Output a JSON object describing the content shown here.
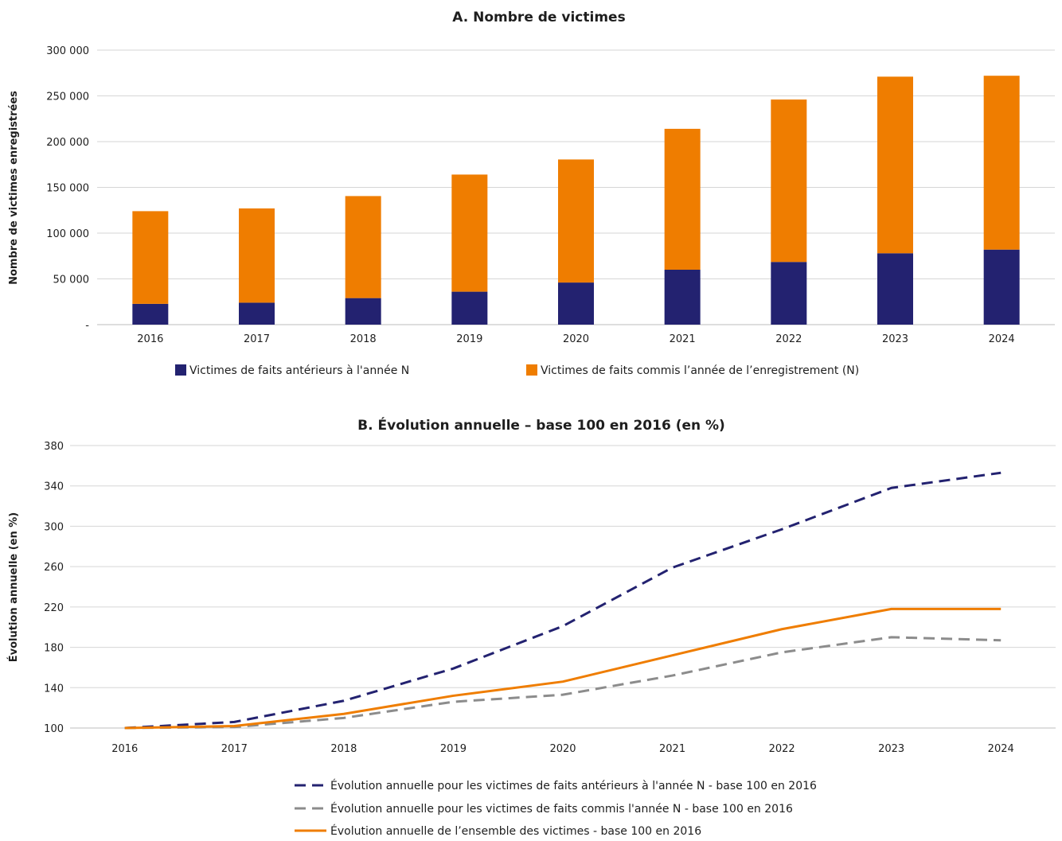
{
  "chart_data": [
    {
      "type": "bar",
      "stacked": true,
      "title": "A. Nombre de victimes",
      "xlabel": "",
      "ylabel": "Nombre de victimes enregistrées",
      "ylim": [
        0,
        300000
      ],
      "yticks": [
        0,
        50000,
        100000,
        150000,
        200000,
        250000,
        300000
      ],
      "ytick_labels": [
        "-",
        "50 000",
        "100 000",
        "150 000",
        "200 000",
        "250 000",
        "300 000"
      ],
      "grid": true,
      "legend_position": "bottom",
      "categories": [
        "2016",
        "2017",
        "2018",
        "2019",
        "2020",
        "2021",
        "2022",
        "2023",
        "2024"
      ],
      "series": [
        {
          "name": "Victimes de faits antérieurs à l'année N",
          "color": "#232270",
          "values": [
            22700,
            24000,
            29000,
            36000,
            46000,
            60000,
            68500,
            78000,
            82000
          ]
        },
        {
          "name": "Victimes de faits commis l’année de l’enregistrement (N)",
          "color": "#ef7d00",
          "values": [
            101300,
            103000,
            111500,
            128000,
            134500,
            154000,
            177500,
            193000,
            190000
          ]
        }
      ]
    },
    {
      "type": "line",
      "title": "B. Évolution annuelle – base 100 en 2016 (en %)",
      "xlabel": "",
      "ylabel": "Évolution annuelle (en %)",
      "ylim": [
        100,
        380
      ],
      "yticks": [
        100,
        140,
        180,
        220,
        260,
        300,
        340,
        380
      ],
      "grid": true,
      "legend_position": "bottom",
      "x": [
        "2016",
        "2017",
        "2018",
        "2019",
        "2020",
        "2021",
        "2022",
        "2023",
        "2024"
      ],
      "series": [
        {
          "name": "Évolution annuelle pour les victimes de faits antérieurs à l'année N - base 100 en 2016",
          "color": "#232270",
          "dashed": true,
          "values": [
            100,
            106,
            127,
            159,
            201,
            259,
            297,
            338,
            353
          ]
        },
        {
          "name": "Évolution annuelle pour les victimes de faits commis l'année N - base 100 en 2016",
          "color": "#8c8c8c",
          "dashed": true,
          "values": [
            100,
            101,
            110,
            126,
            133,
            152,
            175,
            190,
            187
          ]
        },
        {
          "name": "Évolution annuelle de l’ensemble des victimes - base 100 en 2016",
          "color": "#ef7d00",
          "dashed": false,
          "values": [
            100,
            102,
            114,
            132,
            146,
            172,
            198,
            218,
            218
          ]
        }
      ]
    }
  ]
}
